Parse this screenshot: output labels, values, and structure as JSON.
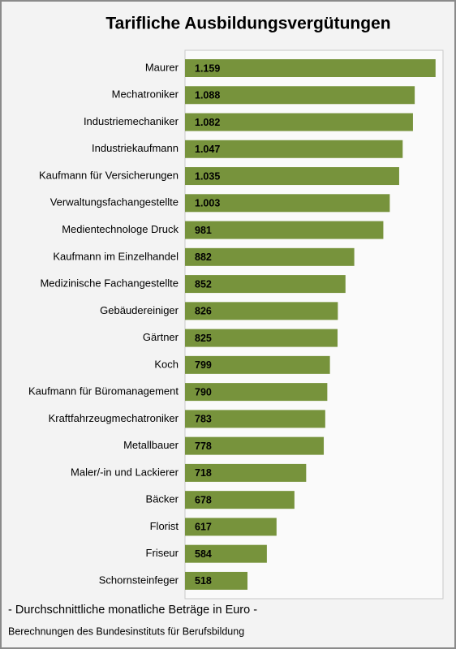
{
  "chart_data": {
    "type": "hbar",
    "title": "Tarifliche Ausbildungsvergütungen",
    "subtitle": "- Durchschnittliche monatliche Beträge in Euro -",
    "source": "Berechnungen des Bundesinstituts für Berufsbildung",
    "categories": [
      "Maurer",
      "Mechatroniker",
      "Industriemechaniker",
      "Industriekaufmann",
      "Kaufmann für Versicherungen",
      "Verwaltungsfachangestellte",
      "Medientechnologe Druck",
      "Kaufmann im Einzelhandel",
      "Medizinische Fachangestellte",
      "Gebäudereiniger",
      "Gärtner",
      "Koch",
      "Kaufmann für Büromanagement",
      "Kraftfahrzeugmechatroniker",
      "Metallbauer",
      "Maler/-in und Lackierer",
      "Bäcker",
      "Florist",
      "Friseur",
      "Schornsteinfeger"
    ],
    "values": [
      1159,
      1088,
      1082,
      1047,
      1035,
      1003,
      981,
      882,
      852,
      826,
      825,
      799,
      790,
      783,
      778,
      718,
      678,
      617,
      584,
      518
    ],
    "value_labels": [
      "1.159",
      "1.088",
      "1.082",
      "1.047",
      "1.035",
      "1.003",
      "981",
      "882",
      "852",
      "826",
      "825",
      "799",
      "790",
      "783",
      "778",
      "718",
      "678",
      "617",
      "584",
      "518"
    ],
    "color": "#77933c",
    "xlim": [
      305,
      1190
    ]
  }
}
